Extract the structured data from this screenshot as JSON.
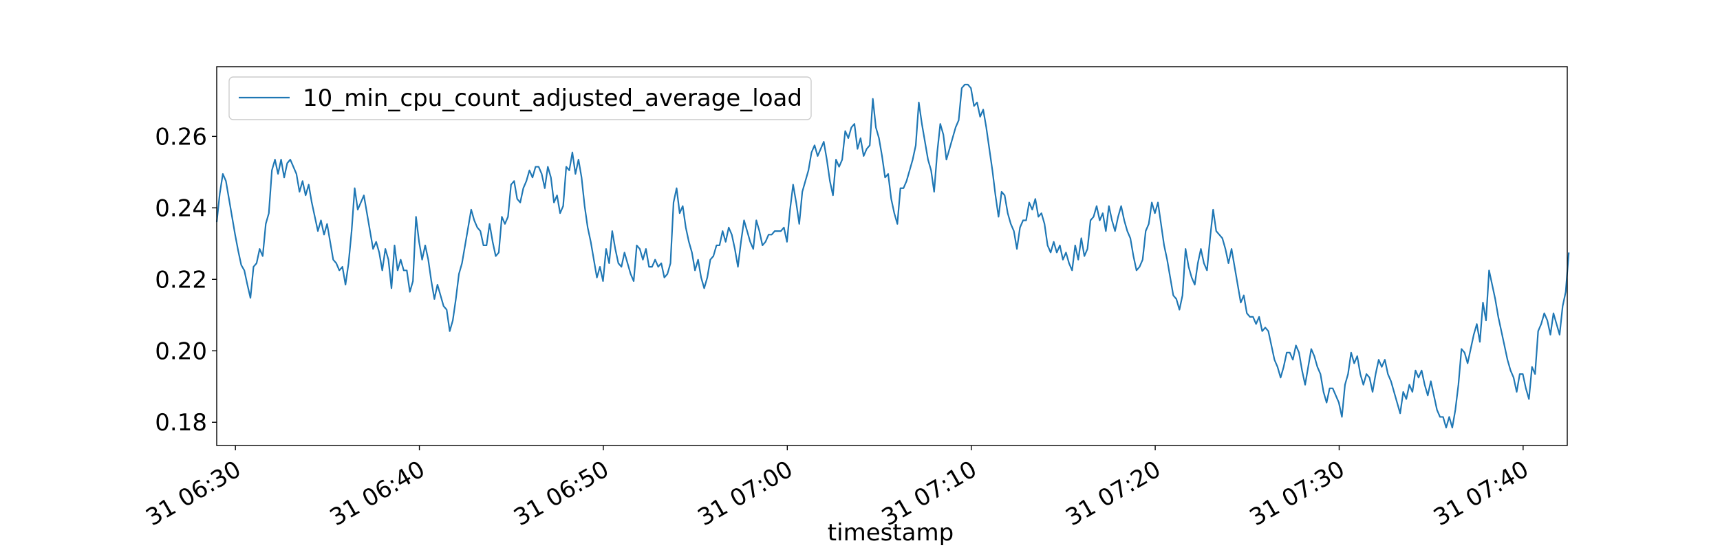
{
  "chart_data": {
    "type": "line",
    "title": "",
    "xlabel": "timestamp",
    "ylabel": "",
    "xlim": [
      "31 06:28:59",
      "31 07:42:24"
    ],
    "ylim": [
      0.1735,
      0.2795
    ],
    "legend": {
      "position": "top-left"
    },
    "grid": false,
    "x_ticks": [
      "31 06:30",
      "31 06:40",
      "31 06:50",
      "31 07:00",
      "31 07:10",
      "31 07:20",
      "31 07:30",
      "31 07:40"
    ],
    "y_ticks": [
      "0.18",
      "0.20",
      "0.22",
      "0.24",
      "0.26"
    ],
    "series": [
      {
        "name": "10_min_cpu_count_adjusted_average_load",
        "color": "#1f77b4",
        "x_start": "31 06:28:59",
        "x_step_seconds": 10,
        "values": [
          0.236,
          0.244,
          0.2495,
          0.2475,
          0.2425,
          0.2375,
          0.2325,
          0.228,
          0.224,
          0.2225,
          0.2185,
          0.2148,
          0.2235,
          0.2245,
          0.2285,
          0.2265,
          0.2355,
          0.2385,
          0.2505,
          0.2535,
          0.2495,
          0.2535,
          0.2485,
          0.2525,
          0.2535,
          0.2515,
          0.2495,
          0.2445,
          0.2475,
          0.2435,
          0.2465,
          0.2415,
          0.2375,
          0.2335,
          0.2365,
          0.2325,
          0.2355,
          0.2305,
          0.2255,
          0.2245,
          0.2225,
          0.2235,
          0.2185,
          0.2245,
          0.2335,
          0.2455,
          0.2395,
          0.2415,
          0.2435,
          0.2385,
          0.2335,
          0.2285,
          0.2305,
          0.2275,
          0.2225,
          0.2285,
          0.2255,
          0.2175,
          0.2295,
          0.2225,
          0.2255,
          0.2225,
          0.2225,
          0.2165,
          0.2195,
          0.2375,
          0.2305,
          0.2255,
          0.2295,
          0.2255,
          0.2195,
          0.2145,
          0.2185,
          0.2155,
          0.2125,
          0.2115,
          0.2055,
          0.2085,
          0.2145,
          0.2215,
          0.2245,
          0.2295,
          0.2345,
          0.2395,
          0.2365,
          0.2345,
          0.2335,
          0.2295,
          0.2295,
          0.2355,
          0.2305,
          0.2265,
          0.2275,
          0.2375,
          0.2355,
          0.2375,
          0.2465,
          0.2475,
          0.2425,
          0.2415,
          0.2455,
          0.2475,
          0.2505,
          0.2485,
          0.2515,
          0.2515,
          0.2495,
          0.2455,
          0.2515,
          0.2485,
          0.2415,
          0.2435,
          0.2385,
          0.2405,
          0.2515,
          0.2505,
          0.2555,
          0.2495,
          0.2535,
          0.2485,
          0.2405,
          0.2345,
          0.2305,
          0.2255,
          0.2205,
          0.2235,
          0.2195,
          0.2285,
          0.2245,
          0.2335,
          0.2285,
          0.2245,
          0.2235,
          0.2275,
          0.2245,
          0.2215,
          0.2195,
          0.2295,
          0.2285,
          0.2255,
          0.2285,
          0.2235,
          0.2235,
          0.2255,
          0.2235,
          0.2245,
          0.2205,
          0.2215,
          0.2245,
          0.2415,
          0.2455,
          0.2385,
          0.2405,
          0.2345,
          0.2305,
          0.2275,
          0.2225,
          0.2255,
          0.2205,
          0.2175,
          0.2205,
          0.2255,
          0.2265,
          0.2295,
          0.2295,
          0.2335,
          0.2305,
          0.2345,
          0.2325,
          0.2285,
          0.2235,
          0.2305,
          0.2365,
          0.2335,
          0.2305,
          0.2285,
          0.2365,
          0.2335,
          0.2295,
          0.2305,
          0.2325,
          0.2325,
          0.2335,
          0.2335,
          0.2335,
          0.2345,
          0.2305,
          0.2395,
          0.2465,
          0.2415,
          0.2355,
          0.2445,
          0.2475,
          0.2505,
          0.2555,
          0.2575,
          0.2545,
          0.2565,
          0.2585,
          0.2535,
          0.2475,
          0.2435,
          0.2535,
          0.2515,
          0.2535,
          0.2615,
          0.2595,
          0.2625,
          0.2635,
          0.2565,
          0.2595,
          0.2545,
          0.2565,
          0.2575,
          0.2705,
          0.2625,
          0.2595,
          0.2545,
          0.2485,
          0.2495,
          0.2425,
          0.2385,
          0.2355,
          0.2455,
          0.2455,
          0.2475,
          0.2505,
          0.2535,
          0.2575,
          0.2695,
          0.2635,
          0.2585,
          0.2535,
          0.2505,
          0.2445,
          0.2555,
          0.2635,
          0.2605,
          0.2535,
          0.2565,
          0.2595,
          0.2625,
          0.2645,
          0.2735,
          0.2745,
          0.2745,
          0.2735,
          0.2685,
          0.2695,
          0.2655,
          0.2675,
          0.2625,
          0.2565,
          0.2505,
          0.2435,
          0.2375,
          0.2445,
          0.2435,
          0.2385,
          0.2355,
          0.2335,
          0.2285,
          0.2345,
          0.2365,
          0.2365,
          0.2415,
          0.2395,
          0.2425,
          0.2375,
          0.2385,
          0.2355,
          0.2295,
          0.2275,
          0.2305,
          0.2275,
          0.2295,
          0.2255,
          0.2275,
          0.2245,
          0.2225,
          0.2295,
          0.2255,
          0.2315,
          0.2265,
          0.2285,
          0.2365,
          0.2375,
          0.2405,
          0.2365,
          0.2385,
          0.2335,
          0.2405,
          0.2365,
          0.2335,
          0.2375,
          0.2405,
          0.2365,
          0.2335,
          0.2315,
          0.2265,
          0.2225,
          0.2235,
          0.2255,
          0.2335,
          0.2355,
          0.2415,
          0.2385,
          0.2415,
          0.2355,
          0.2295,
          0.2255,
          0.2205,
          0.2155,
          0.2145,
          0.2115,
          0.2155,
          0.2285,
          0.2235,
          0.2205,
          0.2185,
          0.2245,
          0.2285,
          0.2245,
          0.2225,
          0.2315,
          0.2395,
          0.2335,
          0.2325,
          0.2315,
          0.2285,
          0.2245,
          0.2285,
          0.2235,
          0.2185,
          0.2135,
          0.2155,
          0.2105,
          0.2095,
          0.2095,
          0.2075,
          0.2095,
          0.2055,
          0.2065,
          0.2055,
          0.2015,
          0.1975,
          0.1955,
          0.1925,
          0.1955,
          0.1995,
          0.1995,
          0.1975,
          0.2015,
          0.1995,
          0.1945,
          0.1905,
          0.1955,
          0.2005,
          0.1985,
          0.1955,
          0.1935,
          0.1885,
          0.1855,
          0.1895,
          0.1895,
          0.1875,
          0.1855,
          0.1815,
          0.1905,
          0.1935,
          0.1995,
          0.1965,
          0.1985,
          0.1935,
          0.1905,
          0.1935,
          0.1925,
          0.1885,
          0.1935,
          0.1975,
          0.1955,
          0.1975,
          0.1935,
          0.1915,
          0.1885,
          0.1855,
          0.1825,
          0.1885,
          0.1865,
          0.1905,
          0.1885,
          0.1945,
          0.1925,
          0.1945,
          0.1905,
          0.1875,
          0.1915,
          0.1875,
          0.1835,
          0.1815,
          0.1815,
          0.1785,
          0.1815,
          0.1785,
          0.1835,
          0.1905,
          0.2005,
          0.1995,
          0.1965,
          0.2005,
          0.2045,
          0.2075,
          0.2025,
          0.2135,
          0.2085,
          0.2225,
          0.2185,
          0.2145,
          0.2095,
          0.2055,
          0.2015,
          0.1975,
          0.1945,
          0.1925,
          0.1885,
          0.1935,
          0.1935,
          0.1895,
          0.1865,
          0.1955,
          0.1935,
          0.2055,
          0.2075,
          0.2105,
          0.2085,
          0.2045,
          0.2105,
          0.2075,
          0.2045,
          0.2125,
          0.2165,
          0.2275
        ]
      }
    ]
  }
}
